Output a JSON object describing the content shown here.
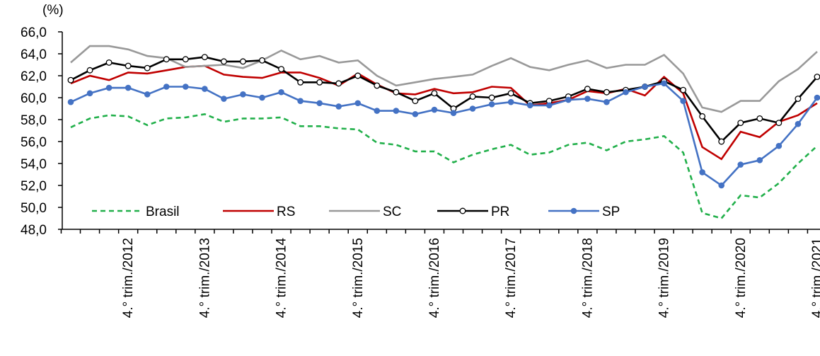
{
  "chart_data": {
    "type": "line",
    "y_unit_label": "(%)",
    "categories": [
      null,
      null,
      null,
      "4.° trim./2012",
      null,
      null,
      null,
      "4.° trim./2013",
      null,
      null,
      null,
      "4.° trim./2014",
      null,
      null,
      null,
      "4.° trim./2015",
      null,
      null,
      null,
      "4.° trim./2016",
      null,
      null,
      null,
      "4.° trim./2017",
      null,
      null,
      null,
      "4.° trim./2018",
      null,
      null,
      null,
      "4.° trim./2019",
      null,
      null,
      null,
      "4.° trim./2020",
      null,
      null,
      null,
      "4.° trim./2021"
    ],
    "series": [
      {
        "name": "Brasil",
        "color": "#22b04b",
        "linestyle": "dashed",
        "marker": "none",
        "values": [
          57.3,
          58.1,
          58.4,
          58.3,
          57.5,
          58.1,
          58.2,
          58.5,
          57.8,
          58.1,
          58.1,
          58.2,
          57.4,
          57.4,
          57.2,
          57.1,
          55.9,
          55.7,
          55.1,
          55.1,
          54.1,
          54.8,
          55.3,
          55.7,
          54.8,
          55.0,
          55.7,
          55.9,
          55.2,
          56.0,
          56.2,
          56.5,
          55.0,
          49.5,
          49.0,
          51.1,
          50.9,
          52.2,
          54.0,
          55.6
        ]
      },
      {
        "name": "RS",
        "color": "#c00000",
        "linestyle": "solid",
        "marker": "none",
        "values": [
          61.3,
          62.0,
          61.6,
          62.3,
          62.2,
          62.5,
          62.8,
          62.9,
          62.1,
          61.9,
          61.8,
          62.3,
          62.3,
          61.8,
          61.1,
          62.2,
          61.2,
          60.4,
          60.3,
          60.8,
          60.4,
          60.5,
          61.0,
          60.9,
          59.3,
          59.5,
          59.8,
          60.6,
          60.4,
          60.8,
          60.2,
          61.9,
          60.4,
          55.5,
          54.4,
          56.9,
          56.4,
          57.8,
          58.4,
          59.5
        ]
      },
      {
        "name": "SC",
        "color": "#999999",
        "linestyle": "solid",
        "marker": "none",
        "values": [
          63.2,
          64.7,
          64.7,
          64.4,
          63.8,
          63.6,
          62.8,
          62.9,
          63.0,
          62.7,
          63.4,
          64.3,
          63.5,
          63.8,
          63.2,
          63.4,
          62.0,
          61.1,
          61.4,
          61.7,
          61.9,
          62.1,
          62.9,
          63.6,
          62.8,
          62.5,
          63.0,
          63.4,
          62.7,
          63.0,
          63.0,
          63.9,
          62.2,
          59.1,
          58.7,
          59.7,
          59.7,
          61.5,
          62.6,
          64.2
        ]
      },
      {
        "name": "PR",
        "color": "#000000",
        "linestyle": "solid",
        "marker": "open-circle",
        "values": [
          61.6,
          62.5,
          63.2,
          62.9,
          62.7,
          63.5,
          63.5,
          63.7,
          63.3,
          63.3,
          63.4,
          62.6,
          61.4,
          61.4,
          61.3,
          62.0,
          61.1,
          60.5,
          59.7,
          60.4,
          59.0,
          60.1,
          60.0,
          60.4,
          59.5,
          59.7,
          60.1,
          60.8,
          60.5,
          60.7,
          61.0,
          61.5,
          60.7,
          58.3,
          56.0,
          57.7,
          58.1,
          57.7,
          59.9,
          61.9
        ]
      },
      {
        "name": "SP",
        "color": "#4472c4",
        "linestyle": "solid",
        "marker": "filled-circle",
        "values": [
          59.6,
          60.4,
          60.9,
          60.9,
          60.3,
          61.0,
          61.0,
          60.8,
          59.9,
          60.3,
          60.0,
          60.5,
          59.7,
          59.5,
          59.2,
          59.5,
          58.8,
          58.8,
          58.5,
          58.9,
          58.6,
          59.0,
          59.4,
          59.6,
          59.3,
          59.3,
          59.8,
          59.9,
          59.6,
          60.5,
          61.0,
          61.3,
          59.7,
          53.2,
          52.0,
          53.9,
          54.3,
          55.6,
          57.6,
          60.0
        ]
      }
    ],
    "ylim": [
      48,
      66
    ],
    "yticks": [
      {
        "value": 48,
        "label": "48,0"
      },
      {
        "value": 50,
        "label": "50,0"
      },
      {
        "value": 52,
        "label": "52,0"
      },
      {
        "value": 54,
        "label": "54,0"
      },
      {
        "value": 56,
        "label": "56,0"
      },
      {
        "value": 58,
        "label": "58,0"
      },
      {
        "value": 60,
        "label": "60,0"
      },
      {
        "value": 62,
        "label": "62,0"
      },
      {
        "value": 64,
        "label": "64,0"
      },
      {
        "value": 66,
        "label": "66,0"
      }
    ],
    "grid": false,
    "legend": "bottom-left"
  }
}
